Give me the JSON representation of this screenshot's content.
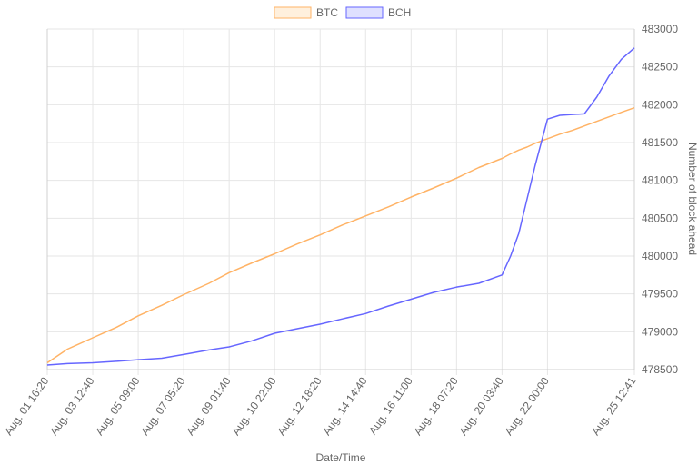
{
  "chart_data": {
    "type": "line",
    "xlabel": "Date/Time",
    "ylabel": "Number of block ahead",
    "ylim": [
      478500,
      483000
    ],
    "yticks": [
      478500,
      479000,
      479500,
      480000,
      480500,
      481000,
      481500,
      482000,
      482500,
      483000
    ],
    "x_tick_labels": [
      "Aug. 01 16:20",
      "Aug. 03 12:40",
      "Aug. 05 09:00",
      "Aug. 07 05:20",
      "Aug. 09 01:40",
      "Aug. 10 22:00",
      "Aug. 12 18:20",
      "Aug. 14 14:40",
      "Aug. 16 11:00",
      "Aug. 18 07:20",
      "Aug. 20 03:40",
      "Aug. 22 00:00",
      "Aug. 25 12:41"
    ],
    "x": [
      "Aug. 01 16:20",
      "Aug. 02 12:00",
      "Aug. 03 12:40",
      "Aug. 04 12:00",
      "Aug. 05 09:00",
      "Aug. 06 08:00",
      "Aug. 07 05:20",
      "Aug. 08 06:00",
      "Aug. 09 01:40",
      "Aug. 10 00:00",
      "Aug. 10 22:00",
      "Aug. 11 20:00",
      "Aug. 12 18:20",
      "Aug. 13 16:00",
      "Aug. 14 14:40",
      "Aug. 15 13:00",
      "Aug. 16 11:00",
      "Aug. 17 09:00",
      "Aug. 18 07:20",
      "Aug. 19 05:00",
      "Aug. 20 03:40",
      "Aug. 20 12:00",
      "Aug. 20 20:00",
      "Aug. 21 04:00",
      "Aug. 21 12:00",
      "Aug. 22 00:00",
      "Aug. 22 12:00",
      "Aug. 23 00:00",
      "Aug. 23 12:00",
      "Aug. 24 00:00",
      "Aug. 24 12:00",
      "Aug. 25 00:00",
      "Aug. 25 12:41"
    ],
    "series": [
      {
        "name": "BTC",
        "color": "#ffb366",
        "fill": "#fff0dd",
        "values": [
          478590,
          478770,
          478920,
          479060,
          479210,
          479350,
          479490,
          479640,
          479780,
          479910,
          480030,
          480160,
          480280,
          480410,
          480530,
          480650,
          480780,
          480900,
          481030,
          481170,
          481290,
          481350,
          481400,
          481440,
          481490,
          481550,
          481610,
          481660,
          481720,
          481780,
          481840,
          481900,
          481960
        ]
      },
      {
        "name": "BCH",
        "color": "#6666ff",
        "fill": "#dfe0ff",
        "values": [
          478560,
          478580,
          478590,
          478610,
          478630,
          478650,
          478700,
          478760,
          478800,
          478880,
          478980,
          479040,
          479100,
          479170,
          479240,
          479340,
          479430,
          479520,
          479590,
          479640,
          479750,
          480000,
          480300,
          480750,
          481200,
          481810,
          481860,
          481870,
          481880,
          482100,
          482380,
          482600,
          482750
        ]
      }
    ],
    "grid": true,
    "legend": "top"
  }
}
